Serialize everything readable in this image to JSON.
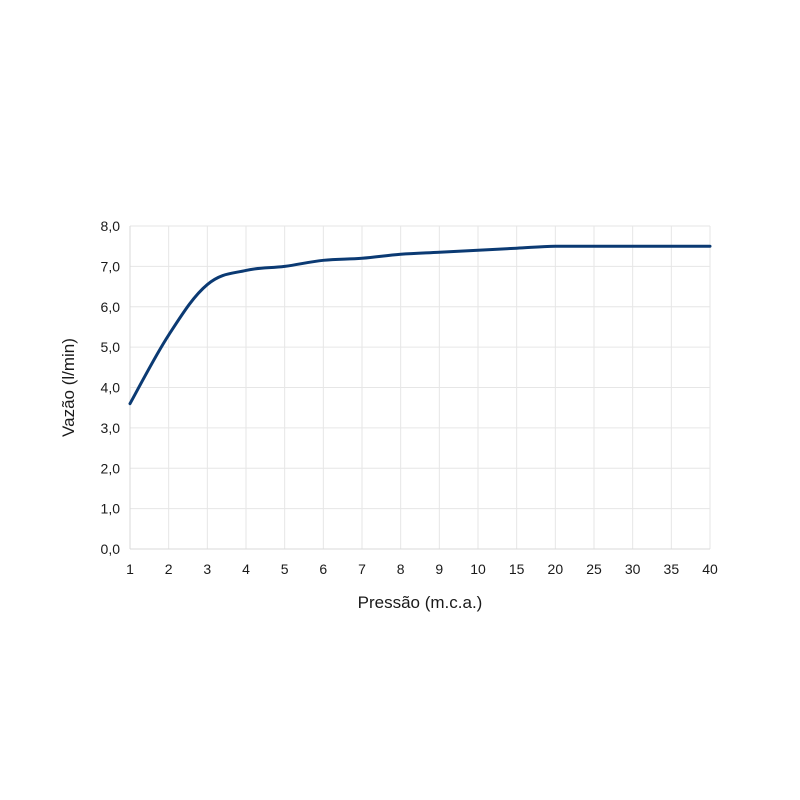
{
  "chart_data": {
    "type": "line",
    "title": "",
    "xlabel": "Pressão (m.c.a.)",
    "ylabel": "Vazão (l/min)",
    "categories": [
      "1",
      "2",
      "3",
      "4",
      "5",
      "6",
      "7",
      "8",
      "9",
      "10",
      "15",
      "20",
      "25",
      "30",
      "35",
      "40"
    ],
    "series": [
      {
        "values": [
          3.6,
          5.3,
          6.55,
          6.9,
          7.0,
          7.15,
          7.2,
          7.3,
          7.35,
          7.4,
          7.45,
          7.5,
          7.5,
          7.5,
          7.5,
          7.5
        ]
      }
    ],
    "yticks": [
      "0,0",
      "1,0",
      "2,0",
      "3,0",
      "4,0",
      "5,0",
      "6,0",
      "7,0",
      "8,0"
    ],
    "ylim": [
      0,
      8
    ],
    "grid": true,
    "line_color": "#0b3a73"
  }
}
